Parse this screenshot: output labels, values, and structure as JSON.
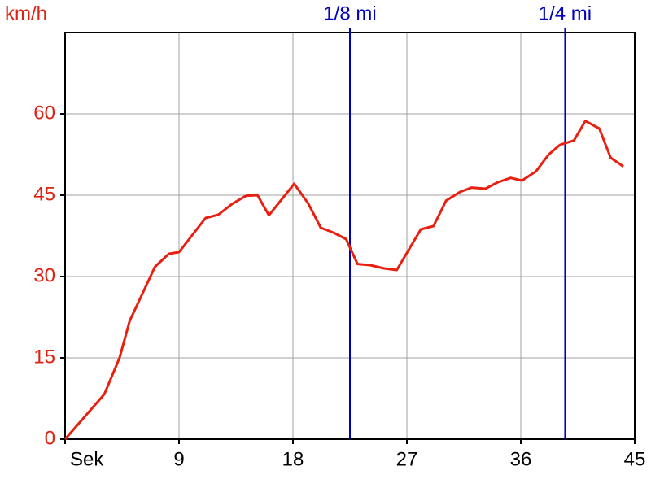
{
  "chart_data": {
    "type": "line",
    "y_label": "km/h",
    "x": [
      0,
      3.1,
      4.3,
      5.1,
      7.1,
      8.2,
      9,
      11.1,
      12.1,
      13.2,
      14.3,
      15.2,
      16.1,
      18.1,
      19.2,
      20.2,
      21.2,
      22.2,
      23.1,
      24.1,
      25.2,
      26.2,
      28.1,
      29.1,
      30.1,
      31.2,
      32.1,
      33.2,
      34.2,
      35.2,
      36.1,
      37.2,
      38.2,
      39.1,
      40.2,
      41.1,
      42.2,
      43.1,
      44.1
    ],
    "series": [
      {
        "color": "#e82010",
        "values": [
          0,
          8.3,
          15,
          21.8,
          31.8,
          34.2,
          34.5,
          40.8,
          41.4,
          43.4,
          44.9,
          45,
          41.3,
          47.1,
          43.5,
          39,
          38.1,
          36.9,
          32.3,
          32.1,
          31.5,
          31.2,
          38.7,
          39.3,
          44,
          45.6,
          46.4,
          46.2,
          47.4,
          48.2,
          47.7,
          49.4,
          52.5,
          54.3,
          55.1,
          58.7,
          57.3,
          51.9,
          50.3
        ]
      }
    ],
    "xlim": [
      0,
      45
    ],
    "xticks": [
      {
        "value": 0,
        "label": "Sek"
      },
      9,
      18,
      27,
      36,
      45
    ],
    "ylim": [
      0,
      75
    ],
    "yticks": [
      0,
      15,
      30,
      45,
      60
    ],
    "grid": true,
    "markers": [
      {
        "label": "1/8 mi",
        "x": 22.5,
        "color": "#0000c0"
      },
      {
        "label": "1/4 mi",
        "x": 39.5,
        "color": "#0000c0"
      }
    ]
  }
}
